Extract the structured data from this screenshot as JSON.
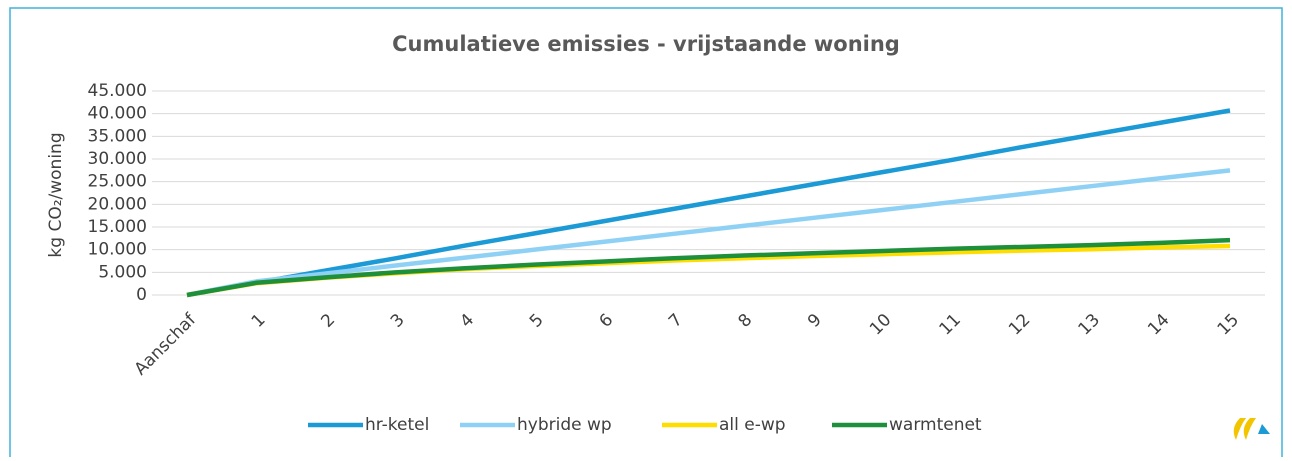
{
  "chart_data": {
    "type": "line",
    "title": "Cumulatieve emissies - vrijstaande woning",
    "y_label": "kg CO₂/woning",
    "categories": [
      "Aanschaf",
      "1",
      "2",
      "3",
      "4",
      "5",
      "6",
      "7",
      "8",
      "9",
      "10",
      "11",
      "12",
      "13",
      "14",
      "15"
    ],
    "series": [
      {
        "name": "hr-ketel",
        "color": "#1c9ad6",
        "values": [
          0,
          2700,
          5400,
          8100,
          10900,
          13600,
          16300,
          19000,
          21700,
          24400,
          27100,
          29800,
          32600,
          35300,
          38000,
          40700
        ]
      },
      {
        "name": "hybride wp",
        "color": "#8fd1f5",
        "values": [
          0,
          3000,
          4750,
          6500,
          8250,
          10000,
          11750,
          13500,
          15250,
          17000,
          18750,
          20500,
          22250,
          24000,
          25750,
          27500
        ]
      },
      {
        "name": "all e-wp",
        "color": "#ffdd00",
        "values": [
          0,
          2600,
          3800,
          4800,
          5700,
          6400,
          7000,
          7600,
          8100,
          8600,
          9000,
          9400,
          9800,
          10100,
          10500,
          10800
        ]
      },
      {
        "name": "warmtenet",
        "color": "#1e8f3a",
        "values": [
          0,
          2700,
          3900,
          5000,
          5900,
          6700,
          7400,
          8100,
          8700,
          9200,
          9700,
          10200,
          10600,
          11000,
          11500,
          12100
        ]
      }
    ],
    "ylim": [
      0,
      45000
    ],
    "yticks": [
      0,
      {
        "value": 5000,
        "label": "5.000"
      },
      {
        "value": 10000,
        "label": "10.000"
      },
      {
        "value": 15000,
        "label": "15.000"
      },
      {
        "value": 20000,
        "label": "20.000"
      },
      {
        "value": 25000,
        "label": "25.000"
      },
      {
        "value": 30000,
        "label": "30.000"
      },
      {
        "value": 35000,
        "label": "35.000"
      },
      {
        "value": 40000,
        "label": "40.000"
      },
      {
        "value": 45000,
        "label": "45.000"
      }
    ],
    "grid": true,
    "legend": "bottom"
  }
}
